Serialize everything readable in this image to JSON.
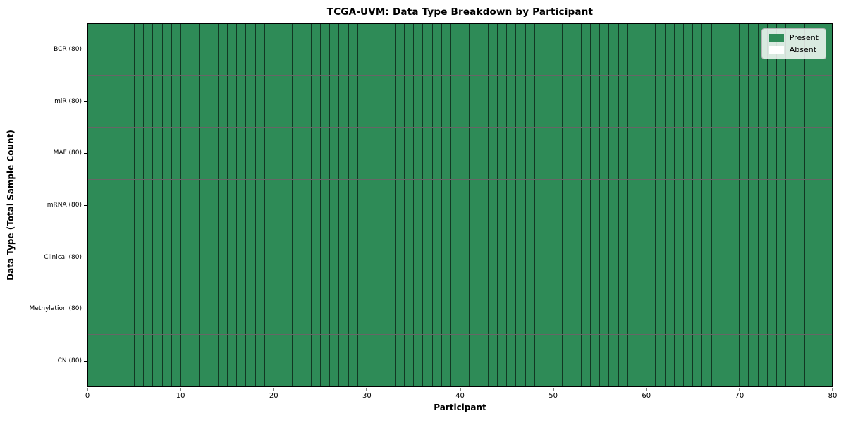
{
  "chart_data": {
    "type": "heatmap",
    "title": "TCGA-UVM: Data Type Breakdown by Participant",
    "xlabel": "Participant",
    "ylabel": "Data Type (Total Sample Count)",
    "xlim": [
      0,
      80
    ],
    "x_ticks": [
      0,
      10,
      20,
      30,
      40,
      50,
      60,
      70,
      80
    ],
    "participants": 80,
    "rows_top_to_bottom": [
      {
        "label": "BCR (80)",
        "present": 80,
        "absent": 0
      },
      {
        "label": "miR (80)",
        "present": 80,
        "absent": 0
      },
      {
        "label": "MAF (80)",
        "present": 80,
        "absent": 0
      },
      {
        "label": "mRNA (80)",
        "present": 80,
        "absent": 0
      },
      {
        "label": "Clinical (80)",
        "present": 80,
        "absent": 0
      },
      {
        "label": "Methylation (80)",
        "present": 80,
        "absent": 0
      },
      {
        "label": "CN (80)",
        "present": 80,
        "absent": 0
      }
    ],
    "legend": {
      "position": "upper right",
      "entries": [
        {
          "label": "Present",
          "color": "#2e8b57"
        },
        {
          "label": "Absent",
          "color": "#ffffff"
        }
      ]
    },
    "colors": {
      "present": "#2e8b57",
      "absent": "#ffffff",
      "cell_edge": "rgba(0,0,0,0.6)",
      "spine": "#000000"
    },
    "grid": "cell-borders"
  }
}
